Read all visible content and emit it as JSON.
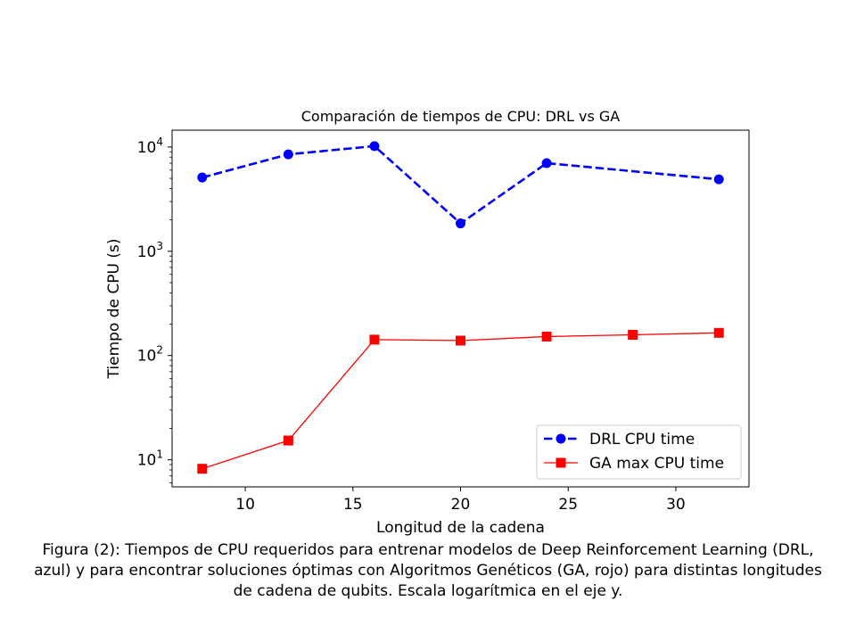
{
  "chart_data": {
    "type": "line",
    "title": "Comparación de tiempos de CPU: DRL vs GA",
    "xlabel": "Longitud de la cadena",
    "ylabel": "Tiempo de CPU (s)",
    "yscale": "log",
    "xlim": [
      6.6,
      33.4
    ],
    "ylim": [
      5.5,
      14500
    ],
    "xticks": [
      10,
      15,
      20,
      25,
      30
    ],
    "yticks": [
      {
        "value": 10,
        "base": "10",
        "exp": "1"
      },
      {
        "value": 100,
        "base": "10",
        "exp": "2"
      },
      {
        "value": 1000,
        "base": "10",
        "exp": "3"
      },
      {
        "value": 10000,
        "base": "10",
        "exp": "4"
      }
    ],
    "grid": false,
    "legend_position": "lower-right",
    "series": [
      {
        "name": "DRL CPU time",
        "color": "#0000ff",
        "style": "dashed",
        "marker": "circle",
        "x": [
          8,
          12,
          16,
          20,
          24,
          32
        ],
        "y": [
          5100,
          8500,
          10200,
          1850,
          7000,
          4900
        ]
      },
      {
        "name": "GA max CPU time",
        "color": "#ff0000",
        "style": "solid",
        "marker": "square",
        "x": [
          8,
          12,
          16,
          20,
          24,
          28,
          32
        ],
        "y": [
          8.2,
          15.3,
          142,
          139,
          152,
          158,
          165
        ]
      }
    ]
  },
  "caption": {
    "lines": [
      "Figura (2): Tiempos de CPU requeridos para entrenar modelos de Deep Reinforcement Learning (DRL,",
      "azul) y para encontrar soluciones óptimas con Algoritmos Genéticos (GA, rojo) para distintas longitudes",
      "de cadena de qubits. Escala logarítmica en el eje y."
    ]
  }
}
